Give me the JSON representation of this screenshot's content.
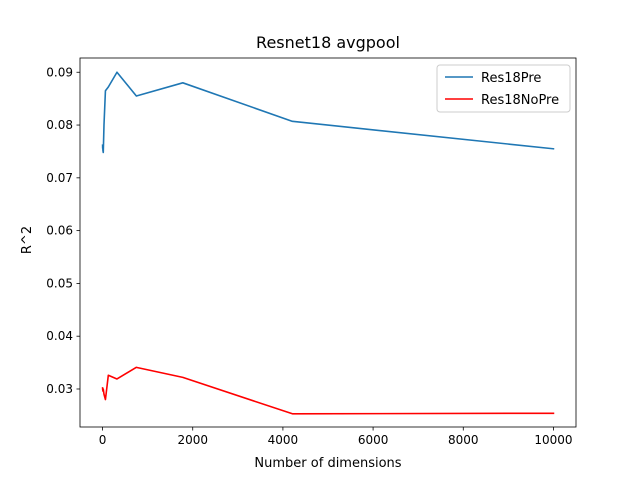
{
  "chart_data": {
    "type": "line",
    "title": "Resnet18 avgpool",
    "xlabel": "Number of dimensions",
    "ylabel": "R^2",
    "xlim": [
      -500,
      10500
    ],
    "ylim": [
      0.0228,
      0.0927
    ],
    "xticks": [
      0,
      2000,
      4000,
      6000,
      8000,
      10000
    ],
    "xtick_labels": [
      "0",
      "2000",
      "4000",
      "6000",
      "8000",
      "10000"
    ],
    "yticks": [
      0.03,
      0.04,
      0.05,
      0.06,
      0.07,
      0.08,
      0.09
    ],
    "ytick_labels": [
      "0.03",
      "0.04",
      "0.05",
      "0.06",
      "0.07",
      "0.08",
      "0.09"
    ],
    "grid": false,
    "legend_position": "upper right",
    "series": [
      {
        "name": "Res18Pre",
        "color": "#1f77b4",
        "x": [
          1,
          2,
          4,
          8,
          16,
          32,
          64,
          128,
          320,
          750,
          1780,
          4210,
          10000
        ],
        "y": [
          0.0762,
          0.0756,
          0.076,
          0.0752,
          0.0748,
          0.08,
          0.0865,
          0.0872,
          0.09,
          0.0855,
          0.088,
          0.0807,
          0.0755
        ]
      },
      {
        "name": "Res18NoPre",
        "color": "#ff0000",
        "x": [
          1,
          2,
          4,
          8,
          16,
          32,
          64,
          128,
          320,
          750,
          1780,
          4210,
          10000
        ],
        "y": [
          0.0302,
          0.0299,
          0.03,
          0.0296,
          0.03,
          0.029,
          0.028,
          0.0326,
          0.0319,
          0.0341,
          0.0322,
          0.0253,
          0.0254
        ]
      }
    ]
  }
}
